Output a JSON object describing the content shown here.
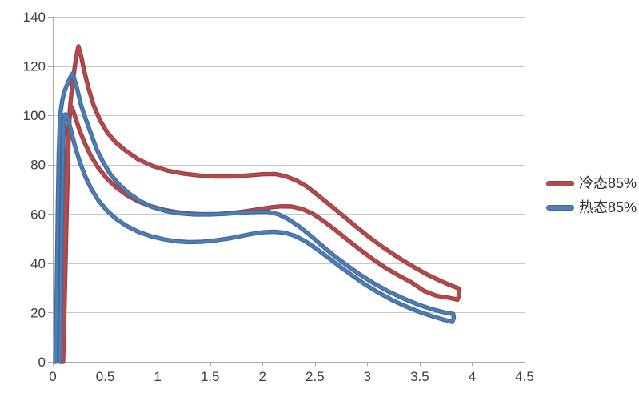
{
  "chart_data": {
    "type": "line",
    "title": "",
    "xlabel": "",
    "ylabel": "",
    "xlim": [
      0,
      4.5
    ],
    "ylim": [
      0,
      140
    ],
    "x_ticks": [
      0,
      0.5,
      1,
      1.5,
      2,
      2.5,
      3,
      3.5,
      4,
      4.5
    ],
    "x_tick_labels": [
      "0",
      "0.5",
      "1",
      "1.5",
      "2",
      "2.5",
      "3",
      "3.5",
      "4",
      "4.5"
    ],
    "y_ticks": [
      0,
      20,
      40,
      60,
      80,
      100,
      120,
      140
    ],
    "y_tick_labels": [
      "0",
      "20",
      "40",
      "60",
      "80",
      "100",
      "120",
      "140"
    ],
    "grid": "horizontal-only",
    "grid_color": "#c8c8c8",
    "axis_color": "#a8a8a8",
    "tick_label_color": "#3c3c3c",
    "legend_position": "right-middle",
    "series": [
      {
        "name": "冷态85%",
        "color": "#b5494b",
        "edge_color": "#9a3e40",
        "points": [
          [
            0.075,
            0
          ],
          [
            0.09,
            18
          ],
          [
            0.103,
            40
          ],
          [
            0.117,
            62
          ],
          [
            0.132,
            80
          ],
          [
            0.147,
            93
          ],
          [
            0.162,
            102
          ],
          [
            0.178,
            109
          ],
          [
            0.196,
            115.5
          ],
          [
            0.213,
            120.8
          ],
          [
            0.228,
            124.8
          ],
          [
            0.24,
            127.2
          ],
          [
            0.245,
            128
          ],
          [
            0.27,
            124
          ],
          [
            0.3,
            118
          ],
          [
            0.34,
            111
          ],
          [
            0.39,
            104
          ],
          [
            0.45,
            98
          ],
          [
            0.52,
            93
          ],
          [
            0.6,
            89
          ],
          [
            0.7,
            85.5
          ],
          [
            0.82,
            82
          ],
          [
            0.95,
            79.5
          ],
          [
            1.1,
            77.5
          ],
          [
            1.25,
            76.3
          ],
          [
            1.4,
            75.6
          ],
          [
            1.55,
            75.2
          ],
          [
            1.7,
            75.2
          ],
          [
            1.85,
            75.6
          ],
          [
            2.0,
            76.1
          ],
          [
            2.12,
            76.2
          ],
          [
            2.22,
            75.3
          ],
          [
            2.32,
            73.6
          ],
          [
            2.42,
            71.2
          ],
          [
            2.52,
            67.9
          ],
          [
            2.64,
            63.8
          ],
          [
            2.77,
            59.2
          ],
          [
            2.9,
            54.6
          ],
          [
            3.03,
            50.2
          ],
          [
            3.16,
            46.2
          ],
          [
            3.3,
            42.2
          ],
          [
            3.44,
            38.6
          ],
          [
            3.58,
            35.2
          ],
          [
            3.7,
            32.8
          ],
          [
            3.8,
            31.0
          ],
          [
            3.87,
            29.8
          ],
          [
            3.875,
            27
          ],
          [
            3.86,
            25.2
          ],
          [
            3.78,
            26.0
          ],
          [
            3.66,
            26.8
          ],
          [
            3.54,
            28.8
          ],
          [
            3.42,
            32.3
          ],
          [
            3.3,
            35.0
          ],
          [
            3.18,
            38.0
          ],
          [
            3.06,
            41.4
          ],
          [
            2.94,
            45.2
          ],
          [
            2.82,
            49.2
          ],
          [
            2.7,
            53.3
          ],
          [
            2.58,
            57.2
          ],
          [
            2.48,
            60.1
          ],
          [
            2.38,
            62.0
          ],
          [
            2.28,
            63.0
          ],
          [
            2.18,
            63.1
          ],
          [
            2.08,
            62.7
          ],
          [
            1.96,
            61.9
          ],
          [
            1.84,
            61.1
          ],
          [
            1.71,
            60.4
          ],
          [
            1.58,
            60.0
          ],
          [
            1.45,
            59.9
          ],
          [
            1.32,
            60.1
          ],
          [
            1.19,
            60.7
          ],
          [
            1.06,
            61.7
          ],
          [
            0.93,
            63.2
          ],
          [
            0.81,
            65.2
          ],
          [
            0.7,
            67.8
          ],
          [
            0.6,
            70.9
          ],
          [
            0.51,
            74.6
          ],
          [
            0.43,
            78.9
          ],
          [
            0.36,
            83.8
          ],
          [
            0.3,
            89.2
          ],
          [
            0.255,
            94.0
          ],
          [
            0.22,
            98.5
          ],
          [
            0.195,
            101.7
          ],
          [
            0.18,
            103.3
          ],
          [
            0.17,
            103.8
          ],
          [
            0.158,
            98
          ],
          [
            0.147,
            85
          ],
          [
            0.133,
            62
          ],
          [
            0.118,
            34
          ],
          [
            0.105,
            10
          ],
          [
            0.098,
            0
          ]
        ]
      },
      {
        "name": "热态85%",
        "color": "#4f7db4",
        "edge_color": "#3c699b",
        "points": [
          [
            0.025,
            0
          ],
          [
            0.033,
            15
          ],
          [
            0.041,
            40
          ],
          [
            0.049,
            65
          ],
          [
            0.057,
            85
          ],
          [
            0.066,
            96
          ],
          [
            0.076,
            102
          ],
          [
            0.09,
            106
          ],
          [
            0.107,
            109
          ],
          [
            0.127,
            111.5
          ],
          [
            0.148,
            113.6
          ],
          [
            0.168,
            115.5
          ],
          [
            0.182,
            116.5
          ],
          [
            0.19,
            117
          ],
          [
            0.23,
            111
          ],
          [
            0.27,
            104
          ],
          [
            0.31,
            99
          ],
          [
            0.36,
            93
          ],
          [
            0.42,
            86
          ],
          [
            0.48,
            81
          ],
          [
            0.55,
            76
          ],
          [
            0.63,
            72
          ],
          [
            0.72,
            68.5
          ],
          [
            0.83,
            65.3
          ],
          [
            0.95,
            62.8
          ],
          [
            1.08,
            61.2
          ],
          [
            1.22,
            60.2
          ],
          [
            1.35,
            59.8
          ],
          [
            1.5,
            59.8
          ],
          [
            1.65,
            60.1
          ],
          [
            1.8,
            60.5
          ],
          [
            1.95,
            60.9
          ],
          [
            2.05,
            60.9
          ],
          [
            2.15,
            59.9
          ],
          [
            2.25,
            57.8
          ],
          [
            2.35,
            54.9
          ],
          [
            2.45,
            51.5
          ],
          [
            2.55,
            47.8
          ],
          [
            2.67,
            43.5
          ],
          [
            2.8,
            39.3
          ],
          [
            2.93,
            35.4
          ],
          [
            3.06,
            31.9
          ],
          [
            3.2,
            28.6
          ],
          [
            3.34,
            25.8
          ],
          [
            3.48,
            23.3
          ],
          [
            3.62,
            21.3
          ],
          [
            3.74,
            20.0
          ],
          [
            3.82,
            19.4
          ],
          [
            3.825,
            17.8
          ],
          [
            3.81,
            16.2
          ],
          [
            3.71,
            17.3
          ],
          [
            3.59,
            18.9
          ],
          [
            3.47,
            20.7
          ],
          [
            3.35,
            22.8
          ],
          [
            3.23,
            25.2
          ],
          [
            3.11,
            28.0
          ],
          [
            2.99,
            31.1
          ],
          [
            2.87,
            34.6
          ],
          [
            2.75,
            38.3
          ],
          [
            2.63,
            42.2
          ],
          [
            2.51,
            46.0
          ],
          [
            2.41,
            48.9
          ],
          [
            2.31,
            51.1
          ],
          [
            2.21,
            52.4
          ],
          [
            2.11,
            52.8
          ],
          [
            2.01,
            52.6
          ],
          [
            1.91,
            52.0
          ],
          [
            1.79,
            51.0
          ],
          [
            1.67,
            50.0
          ],
          [
            1.54,
            49.2
          ],
          [
            1.42,
            48.7
          ],
          [
            1.3,
            48.6
          ],
          [
            1.18,
            48.9
          ],
          [
            1.06,
            49.7
          ],
          [
            0.94,
            50.9
          ],
          [
            0.82,
            52.7
          ],
          [
            0.71,
            55.0
          ],
          [
            0.61,
            57.8
          ],
          [
            0.52,
            61.2
          ],
          [
            0.44,
            65.2
          ],
          [
            0.37,
            69.9
          ],
          [
            0.31,
            75.2
          ],
          [
            0.26,
            80.8
          ],
          [
            0.22,
            86.2
          ],
          [
            0.19,
            91.0
          ],
          [
            0.165,
            95.3
          ],
          [
            0.148,
            98.3
          ],
          [
            0.135,
            99.9
          ],
          [
            0.122,
            100.4
          ],
          [
            0.112,
            100.2
          ],
          [
            0.103,
            96
          ],
          [
            0.095,
            82
          ],
          [
            0.086,
            58
          ],
          [
            0.078,
            30
          ],
          [
            0.071,
            8
          ],
          [
            0.068,
            0
          ]
        ]
      }
    ]
  }
}
